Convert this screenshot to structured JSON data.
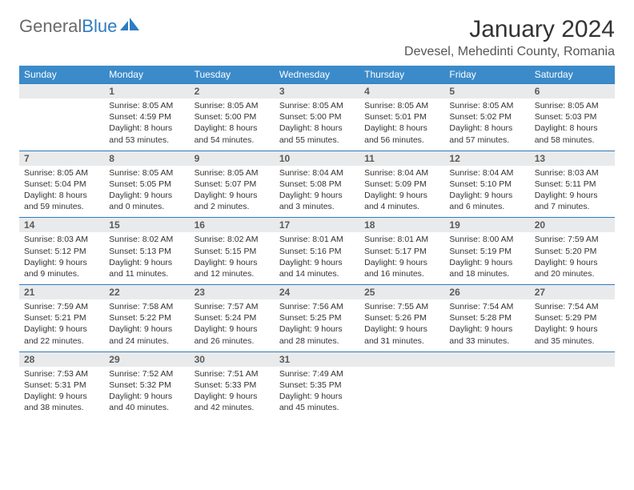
{
  "branding": {
    "logo_text_1": "General",
    "logo_text_2": "Blue",
    "logo_color_gray": "#6a6a6a",
    "logo_color_blue": "#2e7cc2"
  },
  "header": {
    "month_title": "January 2024",
    "location": "Devesel, Mehedinti County, Romania"
  },
  "colors": {
    "header_bg": "#3b8bca",
    "header_text": "#ffffff",
    "daynum_bg": "#e9eaeb",
    "rule": "#2e7cc2",
    "body_text": "#333333"
  },
  "day_headers": [
    "Sunday",
    "Monday",
    "Tuesday",
    "Wednesday",
    "Thursday",
    "Friday",
    "Saturday"
  ],
  "weeks": [
    {
      "nums": [
        "",
        "1",
        "2",
        "3",
        "4",
        "5",
        "6"
      ],
      "cells": [
        {
          "sunrise": "",
          "sunset": "",
          "daylight": ""
        },
        {
          "sunrise": "Sunrise: 8:05 AM",
          "sunset": "Sunset: 4:59 PM",
          "daylight": "Daylight: 8 hours and 53 minutes."
        },
        {
          "sunrise": "Sunrise: 8:05 AM",
          "sunset": "Sunset: 5:00 PM",
          "daylight": "Daylight: 8 hours and 54 minutes."
        },
        {
          "sunrise": "Sunrise: 8:05 AM",
          "sunset": "Sunset: 5:00 PM",
          "daylight": "Daylight: 8 hours and 55 minutes."
        },
        {
          "sunrise": "Sunrise: 8:05 AM",
          "sunset": "Sunset: 5:01 PM",
          "daylight": "Daylight: 8 hours and 56 minutes."
        },
        {
          "sunrise": "Sunrise: 8:05 AM",
          "sunset": "Sunset: 5:02 PM",
          "daylight": "Daylight: 8 hours and 57 minutes."
        },
        {
          "sunrise": "Sunrise: 8:05 AM",
          "sunset": "Sunset: 5:03 PM",
          "daylight": "Daylight: 8 hours and 58 minutes."
        }
      ]
    },
    {
      "nums": [
        "7",
        "8",
        "9",
        "10",
        "11",
        "12",
        "13"
      ],
      "cells": [
        {
          "sunrise": "Sunrise: 8:05 AM",
          "sunset": "Sunset: 5:04 PM",
          "daylight": "Daylight: 8 hours and 59 minutes."
        },
        {
          "sunrise": "Sunrise: 8:05 AM",
          "sunset": "Sunset: 5:05 PM",
          "daylight": "Daylight: 9 hours and 0 minutes."
        },
        {
          "sunrise": "Sunrise: 8:05 AM",
          "sunset": "Sunset: 5:07 PM",
          "daylight": "Daylight: 9 hours and 2 minutes."
        },
        {
          "sunrise": "Sunrise: 8:04 AM",
          "sunset": "Sunset: 5:08 PM",
          "daylight": "Daylight: 9 hours and 3 minutes."
        },
        {
          "sunrise": "Sunrise: 8:04 AM",
          "sunset": "Sunset: 5:09 PM",
          "daylight": "Daylight: 9 hours and 4 minutes."
        },
        {
          "sunrise": "Sunrise: 8:04 AM",
          "sunset": "Sunset: 5:10 PM",
          "daylight": "Daylight: 9 hours and 6 minutes."
        },
        {
          "sunrise": "Sunrise: 8:03 AM",
          "sunset": "Sunset: 5:11 PM",
          "daylight": "Daylight: 9 hours and 7 minutes."
        }
      ]
    },
    {
      "nums": [
        "14",
        "15",
        "16",
        "17",
        "18",
        "19",
        "20"
      ],
      "cells": [
        {
          "sunrise": "Sunrise: 8:03 AM",
          "sunset": "Sunset: 5:12 PM",
          "daylight": "Daylight: 9 hours and 9 minutes."
        },
        {
          "sunrise": "Sunrise: 8:02 AM",
          "sunset": "Sunset: 5:13 PM",
          "daylight": "Daylight: 9 hours and 11 minutes."
        },
        {
          "sunrise": "Sunrise: 8:02 AM",
          "sunset": "Sunset: 5:15 PM",
          "daylight": "Daylight: 9 hours and 12 minutes."
        },
        {
          "sunrise": "Sunrise: 8:01 AM",
          "sunset": "Sunset: 5:16 PM",
          "daylight": "Daylight: 9 hours and 14 minutes."
        },
        {
          "sunrise": "Sunrise: 8:01 AM",
          "sunset": "Sunset: 5:17 PM",
          "daylight": "Daylight: 9 hours and 16 minutes."
        },
        {
          "sunrise": "Sunrise: 8:00 AM",
          "sunset": "Sunset: 5:19 PM",
          "daylight": "Daylight: 9 hours and 18 minutes."
        },
        {
          "sunrise": "Sunrise: 7:59 AM",
          "sunset": "Sunset: 5:20 PM",
          "daylight": "Daylight: 9 hours and 20 minutes."
        }
      ]
    },
    {
      "nums": [
        "21",
        "22",
        "23",
        "24",
        "25",
        "26",
        "27"
      ],
      "cells": [
        {
          "sunrise": "Sunrise: 7:59 AM",
          "sunset": "Sunset: 5:21 PM",
          "daylight": "Daylight: 9 hours and 22 minutes."
        },
        {
          "sunrise": "Sunrise: 7:58 AM",
          "sunset": "Sunset: 5:22 PM",
          "daylight": "Daylight: 9 hours and 24 minutes."
        },
        {
          "sunrise": "Sunrise: 7:57 AM",
          "sunset": "Sunset: 5:24 PM",
          "daylight": "Daylight: 9 hours and 26 minutes."
        },
        {
          "sunrise": "Sunrise: 7:56 AM",
          "sunset": "Sunset: 5:25 PM",
          "daylight": "Daylight: 9 hours and 28 minutes."
        },
        {
          "sunrise": "Sunrise: 7:55 AM",
          "sunset": "Sunset: 5:26 PM",
          "daylight": "Daylight: 9 hours and 31 minutes."
        },
        {
          "sunrise": "Sunrise: 7:54 AM",
          "sunset": "Sunset: 5:28 PM",
          "daylight": "Daylight: 9 hours and 33 minutes."
        },
        {
          "sunrise": "Sunrise: 7:54 AM",
          "sunset": "Sunset: 5:29 PM",
          "daylight": "Daylight: 9 hours and 35 minutes."
        }
      ]
    },
    {
      "nums": [
        "28",
        "29",
        "30",
        "31",
        "",
        "",
        ""
      ],
      "cells": [
        {
          "sunrise": "Sunrise: 7:53 AM",
          "sunset": "Sunset: 5:31 PM",
          "daylight": "Daylight: 9 hours and 38 minutes."
        },
        {
          "sunrise": "Sunrise: 7:52 AM",
          "sunset": "Sunset: 5:32 PM",
          "daylight": "Daylight: 9 hours and 40 minutes."
        },
        {
          "sunrise": "Sunrise: 7:51 AM",
          "sunset": "Sunset: 5:33 PM",
          "daylight": "Daylight: 9 hours and 42 minutes."
        },
        {
          "sunrise": "Sunrise: 7:49 AM",
          "sunset": "Sunset: 5:35 PM",
          "daylight": "Daylight: 9 hours and 45 minutes."
        },
        {
          "sunrise": "",
          "sunset": "",
          "daylight": ""
        },
        {
          "sunrise": "",
          "sunset": "",
          "daylight": ""
        },
        {
          "sunrise": "",
          "sunset": "",
          "daylight": ""
        }
      ]
    }
  ]
}
